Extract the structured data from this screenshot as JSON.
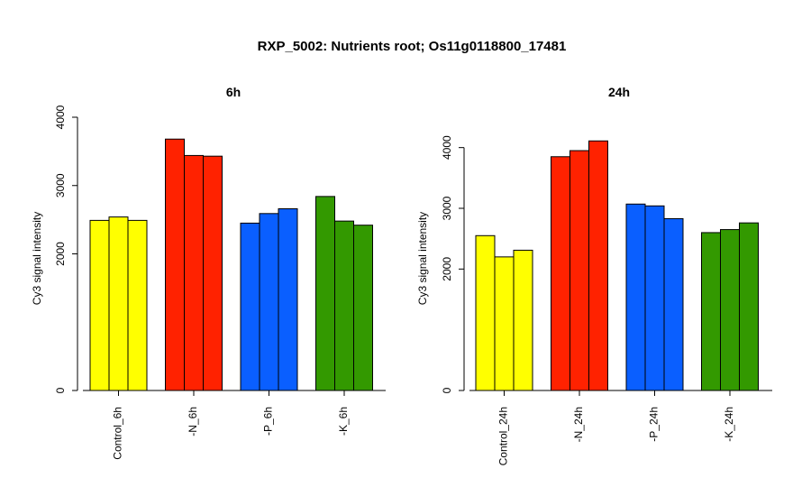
{
  "title": "RXP_5002: Nutrients root; Os11g0118800_17481",
  "colors": {
    "control": "#ffff00",
    "minus_n": "#ff2200",
    "minus_p": "#0a5fff",
    "minus_k": "#339900",
    "bar_stroke": "#000000"
  },
  "chart_data": [
    {
      "type": "bar",
      "title": "6h",
      "ylabel": "Cy3 signal intensity",
      "ylim": [
        0,
        4000
      ],
      "yticks": [
        0,
        2000,
        3000,
        4000
      ],
      "groups": [
        {
          "label": "Control_6h",
          "color_key": "control",
          "values": [
            2490,
            2540,
            2490
          ]
        },
        {
          "label": "-N_6h",
          "color_key": "minus_n",
          "values": [
            3680,
            3440,
            3430
          ]
        },
        {
          "label": "-P_6h",
          "color_key": "minus_p",
          "values": [
            2450,
            2590,
            2660
          ]
        },
        {
          "label": "-K_6h",
          "color_key": "minus_k",
          "values": [
            2840,
            2480,
            2420
          ]
        }
      ]
    },
    {
      "type": "bar",
      "title": "24h",
      "ylabel": "Cy3 signal intensity",
      "ylim": [
        0,
        4500
      ],
      "yticks": [
        0,
        2000,
        3000,
        4000
      ],
      "groups": [
        {
          "label": "Control_24h",
          "color_key": "control",
          "values": [
            2550,
            2200,
            2310
          ]
        },
        {
          "label": "-N_24h",
          "color_key": "minus_n",
          "values": [
            3850,
            3950,
            4110
          ]
        },
        {
          "label": "-P_24h",
          "color_key": "minus_p",
          "values": [
            3070,
            3040,
            2830
          ]
        },
        {
          "label": "-K_24h",
          "color_key": "minus_k",
          "values": [
            2600,
            2650,
            2760
          ]
        }
      ]
    }
  ]
}
